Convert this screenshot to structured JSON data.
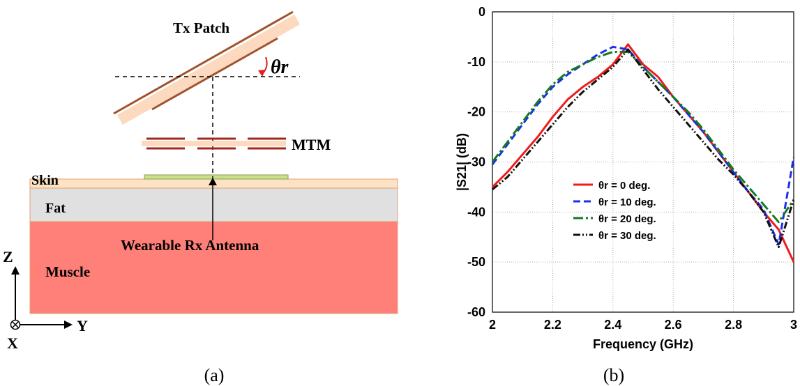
{
  "diagram": {
    "tx_patch": "Tx Patch",
    "angle": "θr",
    "mtm": "MTM",
    "skin": "Skin",
    "fat": "Fat",
    "rx_antenna": "Wearable Rx Antenna",
    "muscle": "Muscle",
    "axis_z": "Z",
    "axis_y": "Y",
    "axis_x": "X",
    "caption": "(a)"
  },
  "chart_data": {
    "type": "line",
    "caption": "(b)",
    "xlabel": "Frequency (GHz)",
    "ylabel": "|S21| (dB)",
    "x": [
      2,
      2.05,
      2.1,
      2.15,
      2.2,
      2.25,
      2.3,
      2.35,
      2.4,
      2.45,
      2.5,
      2.55,
      2.6,
      2.65,
      2.7,
      2.75,
      2.8,
      2.85,
      2.9,
      2.95,
      3
    ],
    "xlim": [
      2,
      3
    ],
    "xticks": [
      2,
      2.2,
      2.4,
      2.6,
      2.8,
      3
    ],
    "ylim": [
      -60,
      0
    ],
    "yticks": [
      0,
      -10,
      -20,
      -30,
      -40,
      -50,
      -60
    ],
    "grid": true,
    "series": [
      {
        "name": "θr = 0 deg.",
        "color": "#ee1c1c",
        "style": "solid",
        "values": [
          -35,
          -32,
          -28.5,
          -25,
          -21,
          -17.5,
          -15,
          -13,
          -10.5,
          -6.5,
          -10.5,
          -13,
          -17,
          -20.5,
          -24,
          -28,
          -32,
          -36,
          -40,
          -43.5,
          -50
        ]
      },
      {
        "name": "θr = 10 deg.",
        "color": "#1c2ee8",
        "style": "dashed",
        "values": [
          -30.5,
          -26.5,
          -22.5,
          -18.5,
          -15,
          -12.5,
          -10.5,
          -8.5,
          -7,
          -7.5,
          -11,
          -14,
          -17,
          -20.5,
          -24,
          -28,
          -32,
          -36,
          -39.5,
          -46.5,
          -29
        ]
      },
      {
        "name": "θr = 20 deg.",
        "color": "#137a1f",
        "style": "dashdot",
        "values": [
          -30,
          -26,
          -22,
          -18,
          -14.5,
          -12,
          -10.5,
          -9,
          -8,
          -8,
          -11,
          -14,
          -17,
          -20,
          -23.5,
          -27.5,
          -31.5,
          -35,
          -38.5,
          -42,
          -37.5
        ]
      },
      {
        "name": "θr = 30 deg.",
        "color": "#111111",
        "style": "dashdotdot",
        "values": [
          -35.5,
          -33,
          -29.5,
          -26,
          -22.5,
          -19,
          -16,
          -13.5,
          -11,
          -7.5,
          -11.5,
          -15.5,
          -19,
          -22.5,
          -26,
          -29.5,
          -32.5,
          -36,
          -40,
          -47,
          -37.5
        ]
      }
    ]
  }
}
